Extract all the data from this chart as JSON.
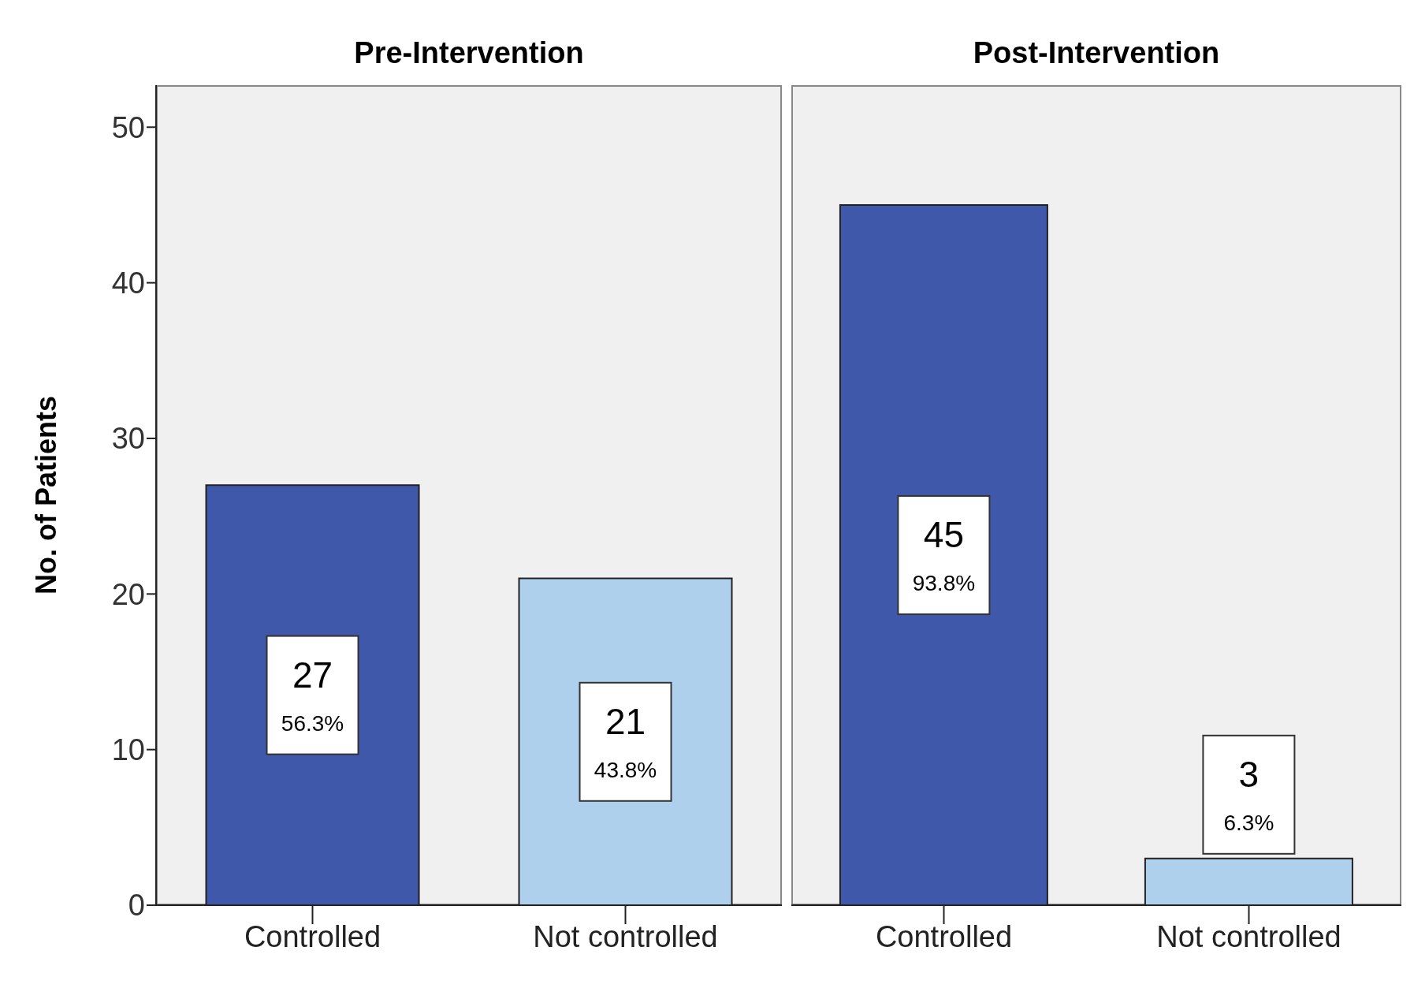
{
  "chart_data": [
    {
      "type": "bar",
      "title": "Pre-Intervention",
      "ylabel": "No. of Patients",
      "categories": [
        "Controlled",
        "Not controlled"
      ],
      "values": [
        27,
        21
      ],
      "colors": [
        "#3f58aa",
        "#aed0ed"
      ],
      "value_labels": [
        "27 56.3%",
        "21 43.8%"
      ],
      "ylim": [
        0,
        52.7
      ],
      "yticks": [
        0,
        10,
        20,
        30,
        40,
        50
      ]
    },
    {
      "type": "bar",
      "title": "Post-Intervention",
      "categories": [
        "Controlled",
        "Not controlled"
      ],
      "values": [
        45,
        3
      ],
      "colors": [
        "#3f58aa",
        "#aed0ed"
      ],
      "value_labels": [
        "45 93.8%",
        "3 6.3%"
      ],
      "ylim": [
        0,
        52.7
      ],
      "yticks": [
        0,
        10,
        20,
        30,
        40,
        50
      ],
      "tick_labels": "x"
    }
  ]
}
